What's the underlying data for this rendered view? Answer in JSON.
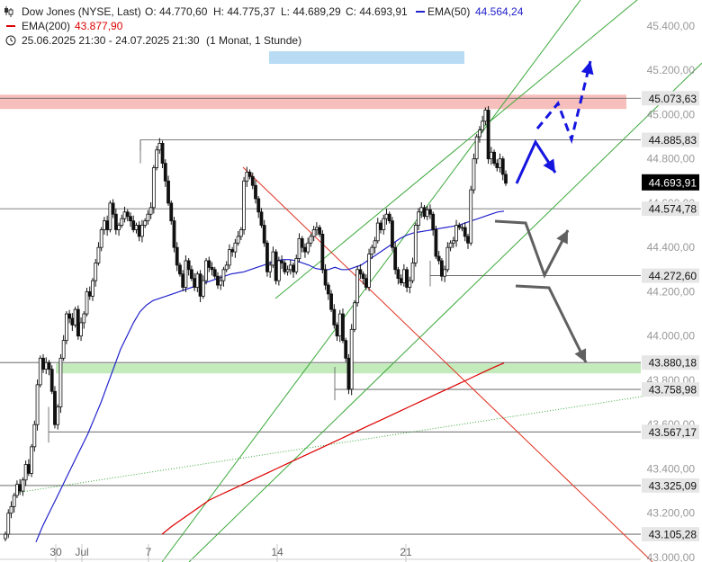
{
  "header": {
    "title": "Dow Jones (NYSE, Last)",
    "open": "O: 44.770,60",
    "high": "H: 44.775,37",
    "low": "L: 44.689,29",
    "close": "C: 44.693,91",
    "ema50_label": "EMA(50)",
    "ema50_value": "44.564,24",
    "ema200_label": "EMA(200)",
    "ema200_value": "43.877,90",
    "range": "25.06.2025 21:30 - 24.07.2025 21:30",
    "range_note": "(1 Monat, 1 Stunde)"
  },
  "colors": {
    "ema50": "#2222cc",
    "ema200": "#dd0000",
    "resistance_zone": "#f4b4b0",
    "support_zone": "#b8e8b0",
    "target_box": "#b8dcf4",
    "channel": "#3aa83a",
    "downtrend": "#e03020",
    "arrow_blue": "#1515e0",
    "arrow_grey": "#606060",
    "current_price_bg": "#000000"
  },
  "chart_data": {
    "type": "candlestick",
    "x_ticks": [
      "30",
      "Jul",
      "7",
      "14",
      "21"
    ],
    "y_ticks": [
      "43.000,00",
      "43.200,00",
      "43.400,00",
      "43.600,00",
      "43.800,00",
      "44.000,00",
      "44.200,00",
      "44.400,00",
      "44.600,00",
      "44.800,00",
      "45.000,00",
      "45.200,00",
      "45.400,00"
    ],
    "ylim": [
      43000,
      45500
    ],
    "level_labels": [
      "45.073,63",
      "44.885,83",
      "44.574,78",
      "44.272,60",
      "43.880,18",
      "43.758,98",
      "43.567,17",
      "43.325,09",
      "43.105,28"
    ],
    "levels": [
      45073.63,
      44885.83,
      44574.78,
      44272.6,
      43880.18,
      43758.98,
      43567.17,
      43325.09,
      43105.28
    ],
    "current_price_label": "44.693,91",
    "current_price": 44693.91,
    "closes": [
      43105,
      43200,
      43230,
      43280,
      43330,
      43300,
      43350,
      43420,
      43380,
      43500,
      43600,
      43780,
      43900,
      43850,
      43880,
      43850,
      43750,
      43600,
      43680,
      43900,
      43980,
      44100,
      44080,
      44050,
      44120,
      44000,
      44060,
      44100,
      44200,
      44180,
      44250,
      44330,
      44400,
      44480,
      44520,
      44480,
      44600,
      44550,
      44480,
      44500,
      44530,
      44560,
      44540,
      44520,
      44480,
      44500,
      44450,
      44500,
      44520,
      44550,
      44580,
      44760,
      44840,
      44870,
      44780,
      44700,
      44600,
      44520,
      44400,
      44320,
      44280,
      44220,
      44340,
      44300,
      44260,
      44220,
      44280,
      44180,
      44250,
      44340,
      44310,
      44300,
      44270,
      44230,
      44250,
      44300,
      44320,
      44390,
      44380,
      44420,
      44450,
      44480,
      44700,
      44740,
      44720,
      44680,
      44620,
      44560,
      44500,
      44420,
      44290,
      44320,
      44380,
      44250,
      44340,
      44330,
      44290,
      44300,
      44320,
      44290,
      44350,
      44440,
      44400,
      44380,
      44420,
      44450,
      44480,
      44490,
      44460,
      44300,
      44230,
      44190,
      44120,
      44050,
      44000,
      44100,
      43980,
      43900,
      43760,
      44030,
      44150,
      44300,
      44280,
      44260,
      44220,
      44370,
      44400,
      44430,
      44510,
      44480,
      44530,
      44550,
      44520,
      44400,
      44300,
      44260,
      44240,
      44300,
      44220,
      44250,
      44330,
      44500,
      44560,
      44580,
      44540,
      44570,
      44550,
      44480,
      44360,
      44340,
      44270,
      44300,
      44400,
      44420,
      44430,
      44500,
      44490,
      44490,
      44450,
      44420,
      44660,
      44800,
      44900,
      44930,
      44970,
      45020,
      44800,
      44830,
      44780,
      44760,
      44800,
      44730,
      44690
    ],
    "ema50": [
      43070,
      43140,
      43200,
      43260,
      43320,
      43380,
      43440,
      43500,
      43560,
      43630,
      43700,
      43780,
      43860,
      43940,
      44000,
      44060,
      44110,
      44140,
      44160,
      44170,
      44180,
      44190,
      44200,
      44210,
      44220,
      44230,
      44240,
      44250,
      44260,
      44270,
      44280,
      44285,
      44290,
      44300,
      44310,
      44320,
      44330,
      44340,
      44345,
      44345,
      44340,
      44330,
      44320,
      44305,
      44300,
      44300,
      44310,
      44300,
      44300,
      44310,
      44320,
      44340,
      44360,
      44380,
      44400,
      44420,
      44440,
      44455,
      44465,
      44470,
      44475,
      44480,
      44485,
      44490,
      44495,
      44500,
      44510,
      44520,
      44530,
      44540,
      44550,
      44560,
      44564
    ],
    "ema200": [
      43105,
      43140,
      43170,
      43200,
      43230,
      43260,
      43280,
      43300,
      43320,
      43340,
      43360,
      43380,
      43400,
      43420,
      43440,
      43460,
      43480,
      43500,
      43520,
      43540,
      43560,
      43580,
      43600,
      43620,
      43640,
      43660,
      43680,
      43700,
      43720,
      43740,
      43760,
      43780,
      43800,
      43820,
      43840,
      43860,
      43878
    ],
    "x_ticks_positions": [
      0,
      0,
      0,
      0,
      0
    ]
  }
}
